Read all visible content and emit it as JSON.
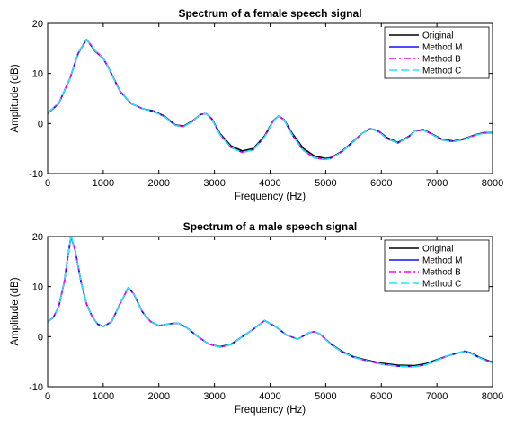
{
  "chart_data": [
    {
      "type": "line",
      "title": "Spectrum of a female speech signal",
      "xlabel": "Frequency (Hz)",
      "ylabel": "Amplitude (dB)",
      "xlim": [
        0,
        8000
      ],
      "ylim": [
        -10,
        20
      ],
      "xticks": [
        "0",
        "1000",
        "2000",
        "3000",
        "4000",
        "5000",
        "6000",
        "7000",
        "8000"
      ],
      "yticks": [
        "-10",
        "0",
        "10",
        "20"
      ],
      "grid": false,
      "legend_position": "top-right",
      "x": [
        0,
        200,
        400,
        550,
        700,
        850,
        1000,
        1100,
        1300,
        1500,
        1700,
        1900,
        2100,
        2300,
        2450,
        2600,
        2750,
        2850,
        2950,
        3100,
        3300,
        3500,
        3700,
        3900,
        4050,
        4150,
        4250,
        4400,
        4600,
        4800,
        5000,
        5100,
        5300,
        5500,
        5650,
        5800,
        5950,
        6100,
        6300,
        6500,
        6600,
        6750,
        6900,
        7100,
        7300,
        7500,
        7700,
        7850,
        8000
      ],
      "series": [
        {
          "name": "Original",
          "color": "#000000",
          "dash": "solid",
          "values": [
            2.0,
            4.0,
            9.0,
            14.0,
            16.8,
            14.5,
            13.0,
            11.0,
            6.5,
            4.0,
            3.0,
            2.5,
            1.5,
            -0.3,
            -0.5,
            0.5,
            1.8,
            2.0,
            1.0,
            -2.0,
            -4.5,
            -5.5,
            -5.0,
            -2.5,
            0.5,
            1.5,
            0.8,
            -2.0,
            -5.0,
            -6.5,
            -7.0,
            -6.8,
            -5.5,
            -3.5,
            -2.0,
            -1.0,
            -1.5,
            -2.8,
            -3.8,
            -2.5,
            -1.5,
            -1.2,
            -2.0,
            -3.2,
            -3.5,
            -3.0,
            -2.2,
            -1.8,
            -1.8
          ]
        },
        {
          "name": "Method M",
          "color": "#1010ff",
          "dash": "solid",
          "values": [
            2.1,
            4.0,
            9.0,
            14.1,
            16.8,
            14.6,
            13.0,
            11.0,
            6.4,
            4.0,
            3.0,
            2.4,
            1.4,
            -0.4,
            -0.6,
            0.4,
            1.8,
            2.0,
            0.9,
            -2.2,
            -4.8,
            -5.8,
            -5.2,
            -2.7,
            0.4,
            1.5,
            0.7,
            -2.3,
            -5.4,
            -6.9,
            -7.2,
            -6.9,
            -5.6,
            -3.6,
            -2.0,
            -1.0,
            -1.6,
            -3.0,
            -3.9,
            -2.6,
            -1.5,
            -1.3,
            -2.1,
            -3.3,
            -3.6,
            -3.1,
            -2.3,
            -1.9,
            -1.9
          ]
        },
        {
          "name": "Method B",
          "color": "#ff00ff",
          "dash": "dashdot",
          "values": [
            2.1,
            4.1,
            9.1,
            14.1,
            16.9,
            14.6,
            13.1,
            11.1,
            6.5,
            4.0,
            3.0,
            2.4,
            1.4,
            -0.4,
            -0.6,
            0.4,
            1.8,
            2.0,
            0.9,
            -2.2,
            -4.8,
            -5.8,
            -5.2,
            -2.7,
            0.4,
            1.5,
            0.7,
            -2.3,
            -5.4,
            -6.9,
            -7.2,
            -6.9,
            -5.6,
            -3.6,
            -2.0,
            -1.0,
            -1.6,
            -3.0,
            -3.9,
            -2.6,
            -1.5,
            -1.3,
            -2.1,
            -3.3,
            -3.6,
            -3.1,
            -2.3,
            -1.9,
            -1.9
          ]
        },
        {
          "name": "Method C",
          "color": "#22e5ff",
          "dash": "dashed",
          "values": [
            2.1,
            4.0,
            9.0,
            14.1,
            16.8,
            14.6,
            13.0,
            11.0,
            6.4,
            4.0,
            3.0,
            2.4,
            1.4,
            -0.4,
            -0.6,
            0.4,
            1.8,
            2.0,
            0.9,
            -2.2,
            -4.8,
            -5.8,
            -5.2,
            -2.7,
            0.4,
            1.5,
            0.7,
            -2.3,
            -5.4,
            -6.9,
            -7.2,
            -6.9,
            -5.6,
            -3.6,
            -2.0,
            -1.0,
            -1.6,
            -3.0,
            -3.9,
            -2.6,
            -1.5,
            -1.3,
            -2.1,
            -3.3,
            -3.6,
            -3.1,
            -2.3,
            -1.9,
            -1.9
          ]
        }
      ]
    },
    {
      "type": "line",
      "title": "Spectrum of a male speech signal",
      "xlabel": "Frequency (Hz)",
      "ylabel": "Amplitude (dB)",
      "xlim": [
        0,
        8000
      ],
      "ylim": [
        -10,
        20
      ],
      "xticks": [
        "0",
        "1000",
        "2000",
        "3000",
        "4000",
        "5000",
        "6000",
        "7000",
        "8000"
      ],
      "yticks": [
        "-10",
        "0",
        "10",
        "20"
      ],
      "grid": false,
      "legend_position": "top-right",
      "x": [
        0,
        100,
        200,
        300,
        350,
        420,
        500,
        600,
        700,
        800,
        900,
        1000,
        1150,
        1300,
        1450,
        1550,
        1700,
        1850,
        2000,
        2200,
        2350,
        2500,
        2700,
        2900,
        3100,
        3300,
        3500,
        3700,
        3900,
        4100,
        4300,
        4500,
        4700,
        4800,
        4900,
        5100,
        5300,
        5500,
        5700,
        6000,
        6300,
        6600,
        6800,
        7000,
        7200,
        7400,
        7500,
        7600,
        7800,
        8000
      ],
      "series": [
        {
          "name": "Original",
          "color": "#000000",
          "dash": "solid",
          "values": [
            3.0,
            3.8,
            6.0,
            11.0,
            15.0,
            20.0,
            17.0,
            11.0,
            6.5,
            4.0,
            2.5,
            2.0,
            3.0,
            6.5,
            9.8,
            8.5,
            5.0,
            3.0,
            2.2,
            2.6,
            2.7,
            1.8,
            0.0,
            -1.5,
            -2.0,
            -1.5,
            0.0,
            1.5,
            3.2,
            2.0,
            0.3,
            -0.5,
            0.8,
            1.0,
            0.5,
            -1.5,
            -3.0,
            -4.0,
            -4.6,
            -5.3,
            -5.7,
            -5.8,
            -5.4,
            -4.6,
            -3.8,
            -3.2,
            -2.9,
            -3.2,
            -4.3,
            -5.1
          ]
        },
        {
          "name": "Method M",
          "color": "#1010ff",
          "dash": "solid",
          "values": [
            3.0,
            3.8,
            6.0,
            11.0,
            15.0,
            20.2,
            17.0,
            11.0,
            6.5,
            4.0,
            2.5,
            2.0,
            3.0,
            6.5,
            9.8,
            8.5,
            5.0,
            3.0,
            2.2,
            2.6,
            2.7,
            1.8,
            0.0,
            -1.5,
            -2.1,
            -1.6,
            0.0,
            1.5,
            3.2,
            2.0,
            0.3,
            -0.5,
            0.8,
            1.0,
            0.5,
            -1.6,
            -3.1,
            -4.1,
            -4.7,
            -5.5,
            -5.9,
            -6.0,
            -5.6,
            -4.7,
            -3.8,
            -3.2,
            -2.9,
            -3.3,
            -4.4,
            -5.2
          ]
        },
        {
          "name": "Method B",
          "color": "#ff00ff",
          "dash": "dashdot",
          "values": [
            3.0,
            3.8,
            6.0,
            11.0,
            15.0,
            20.2,
            17.0,
            11.0,
            6.5,
            4.0,
            2.5,
            2.0,
            3.0,
            6.5,
            9.8,
            8.5,
            5.0,
            3.0,
            2.2,
            2.6,
            2.7,
            1.8,
            0.0,
            -1.5,
            -2.1,
            -1.6,
            0.0,
            1.5,
            3.2,
            2.0,
            0.3,
            -0.5,
            0.8,
            1.0,
            0.5,
            -1.6,
            -3.1,
            -4.1,
            -4.7,
            -5.5,
            -5.9,
            -6.0,
            -5.6,
            -4.7,
            -3.8,
            -3.2,
            -2.9,
            -3.3,
            -4.4,
            -5.2
          ]
        },
        {
          "name": "Method C",
          "color": "#22e5ff",
          "dash": "dashed",
          "values": [
            3.0,
            3.8,
            6.0,
            11.0,
            15.0,
            20.2,
            17.0,
            11.0,
            6.5,
            4.0,
            2.5,
            2.0,
            3.0,
            6.5,
            9.8,
            8.5,
            5.0,
            3.0,
            2.2,
            2.6,
            2.7,
            1.8,
            0.0,
            -1.5,
            -2.1,
            -1.6,
            0.0,
            1.5,
            3.2,
            2.0,
            0.3,
            -0.5,
            0.8,
            1.0,
            0.5,
            -1.6,
            -3.1,
            -4.1,
            -4.7,
            -5.5,
            -5.9,
            -6.0,
            -5.6,
            -4.7,
            -3.8,
            -3.2,
            -2.9,
            -3.3,
            -4.4,
            -5.2
          ]
        }
      ]
    }
  ]
}
